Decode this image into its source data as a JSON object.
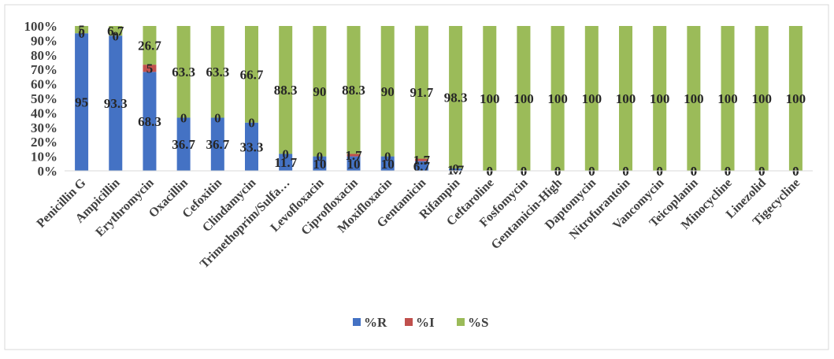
{
  "chart_data": {
    "type": "bar",
    "stacked": true,
    "categories": [
      "Penicillin G",
      "Ampicillin",
      "Erythromycin",
      "Oxacillin",
      "Cefoxitin",
      "Clindamycin",
      "Trimethoprim/Sulfa…",
      "Levofloxacin",
      "Ciprofloxacin",
      "Moxifloxacin",
      "Gentamicin",
      "Rifampin",
      "Ceftaroline",
      "Fosfomycin",
      "Gentamicin-High",
      "Daptomycin",
      "Nitrofurantoin",
      "Vancomycin",
      "Teicoplanin",
      "Minocycline",
      "Linezolid",
      "Tigecycline"
    ],
    "series": [
      {
        "name": "%R",
        "color": "#4472C4",
        "values": [
          95,
          93.3,
          68.3,
          36.7,
          36.7,
          33.3,
          11.7,
          10,
          10,
          10,
          6.7,
          1.7,
          0,
          0,
          0,
          0,
          0,
          0,
          0,
          0,
          0,
          0
        ]
      },
      {
        "name": "%I",
        "color": "#C0504D",
        "values": [
          0,
          0,
          5,
          0,
          0,
          0,
          0,
          0,
          1.7,
          0,
          1.7,
          0,
          0,
          0,
          0,
          0,
          0,
          0,
          0,
          0,
          0,
          0
        ]
      },
      {
        "name": "%S",
        "color": "#9BBB59",
        "values": [
          5,
          6.7,
          26.7,
          63.3,
          63.3,
          66.7,
          88.3,
          90,
          88.3,
          90,
          91.7,
          98.3,
          100,
          100,
          100,
          100,
          100,
          100,
          100,
          100,
          100,
          100
        ]
      }
    ],
    "y_ticks": [
      "0%",
      "10%",
      "20%",
      "30%",
      "40%",
      "50%",
      "60%",
      "70%",
      "80%",
      "90%",
      "100%"
    ],
    "ylim": [
      0,
      100
    ],
    "title": "",
    "xlabel": "",
    "ylabel": "",
    "grid": false,
    "legend_position": "bottom"
  }
}
